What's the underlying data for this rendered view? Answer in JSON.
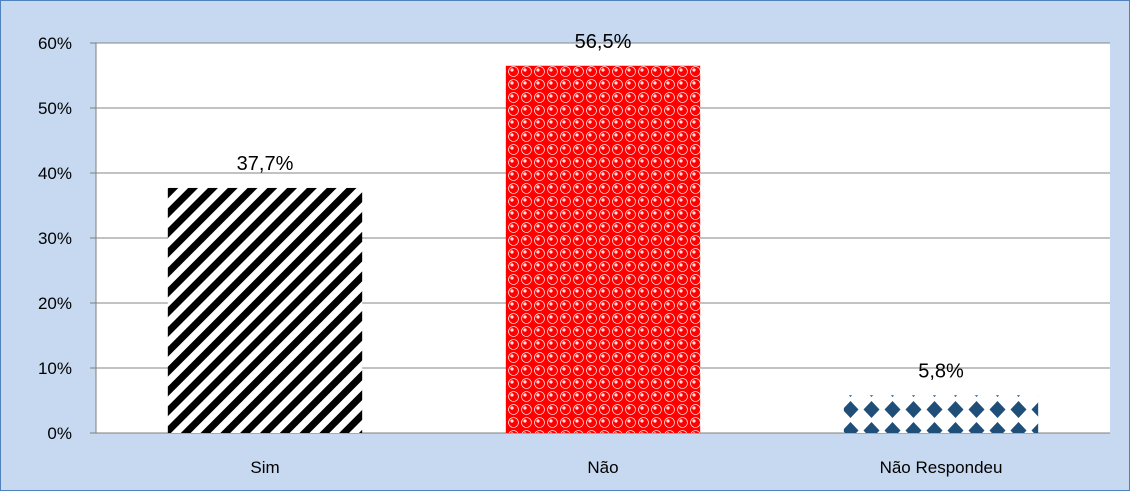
{
  "chart_data": {
    "type": "bar",
    "title": "",
    "xlabel": "",
    "ylabel": "",
    "categories": [
      "Sim",
      "Não",
      "Não Respondeu"
    ],
    "values": [
      37.7,
      56.5,
      5.8
    ],
    "data_labels": [
      "37,7%",
      "56,5%",
      "5,8%"
    ],
    "ylim": [
      0,
      60
    ],
    "y_ticks": [
      0,
      10,
      20,
      30,
      40,
      50,
      60
    ],
    "y_tick_labels": [
      "0%",
      "10%",
      "20%",
      "30%",
      "40%",
      "50%",
      "60%"
    ],
    "grid": true,
    "legend": "none",
    "bar_patterns": [
      "diagonal-stripes",
      "red-dots",
      "blue-diamonds"
    ],
    "colors": {
      "frame_background": "#c6d9f1",
      "frame_border": "#4f81bd",
      "plot_background": "#ffffff",
      "gridline": "#868686",
      "stripe_dark": "#000000",
      "stripe_light": "#ffffff",
      "dot_red": "#ff0000",
      "diamond_blue": "#1f4e79"
    }
  }
}
